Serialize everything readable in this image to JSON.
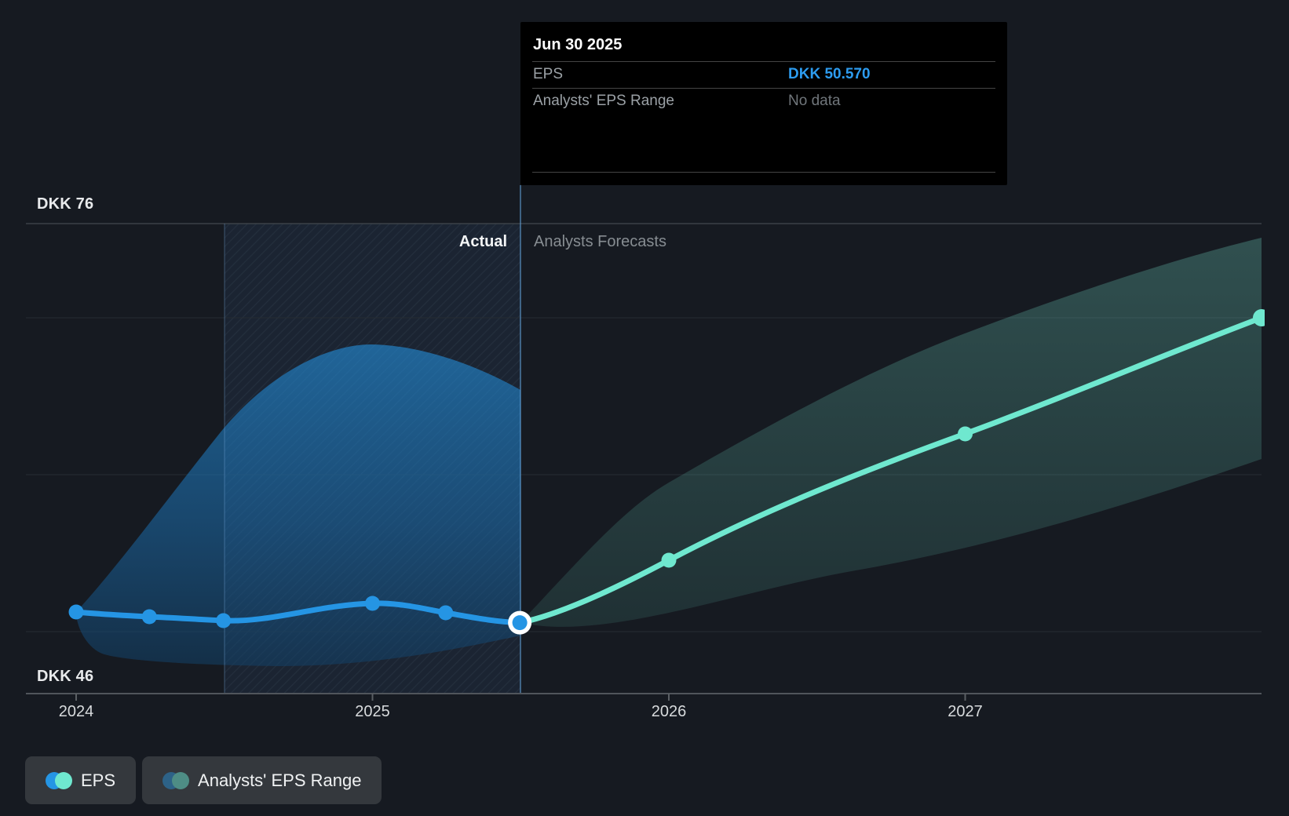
{
  "y_axis": {
    "top_label": "DKK 76",
    "bottom_label": "DKK 46"
  },
  "divider": {
    "actual_label": "Actual",
    "forecast_label": "Analysts Forecasts"
  },
  "tooltip": {
    "title": "Jun 30 2025",
    "rows": [
      {
        "label": "EPS",
        "value": "DKK 50.570"
      },
      {
        "label": "Analysts' EPS Range",
        "value": "No data"
      }
    ]
  },
  "legend": {
    "eps_label": "EPS",
    "range_label": "Analysts' EPS Range"
  },
  "colors": {
    "eps_blue": "#2595e4",
    "forecast_teal": "#6fe8cf",
    "legend_range_blue": "#2d6287",
    "legend_range_teal": "#4e8d85",
    "tooltip_value_blue": "#2d9cef"
  },
  "chart_data": {
    "type": "line",
    "title": "EPS actual vs analysts forecast",
    "unit": "DKK",
    "ylim": [
      46,
      76
    ],
    "y_gridline_values": [
      76,
      70,
      60,
      50,
      46
    ],
    "x_tick_labels": [
      "2024",
      "2025",
      "2026",
      "2027"
    ],
    "x_tick_year_fracs": [
      2024.0,
      2025.0,
      2026.0,
      2027.0
    ],
    "legend_position": "bottom-left",
    "grid": true,
    "actual_series": {
      "name": "EPS",
      "color": "#2595e4",
      "points": [
        {
          "date": "Dec 31 2023",
          "x": 2024.0,
          "value": 51.25
        },
        {
          "date": "Mar 31 2024",
          "x": 2024.247,
          "value": 50.95
        },
        {
          "date": "Jun 30 2024",
          "x": 2024.497,
          "value": 50.7
        },
        {
          "date": "Dec 31 2024",
          "x": 2025.0,
          "value": 51.8
        },
        {
          "date": "Mar 31 2025",
          "x": 2025.247,
          "value": 51.2
        },
        {
          "date": "Jun 30 2025",
          "x": 2025.497,
          "value": 50.57,
          "highlight": true
        }
      ]
    },
    "forecast_series": {
      "name": "EPS (analysts forecast)",
      "color": "#6fe8cf",
      "points": [
        {
          "date": "Dec 31 2025",
          "x": 2026.0,
          "value": 54.55
        },
        {
          "date": "Dec 31 2026",
          "x": 2027.0,
          "value": 62.6
        },
        {
          "date": "Dec 31 2027",
          "x": 2028.0,
          "value": 70.0,
          "edge": true
        }
      ]
    },
    "forecast_range": {
      "name": "Analysts' EPS Range",
      "upper": [
        {
          "date": "Jun 30 2025",
          "x": 2025.497,
          "value": 50.57
        },
        {
          "date": "Dec 31 2025",
          "x": 2026.0,
          "value": 59.5
        },
        {
          "date": "Dec 31 2026",
          "x": 2027.0,
          "value": 68.0
        },
        {
          "date": "Dec 31 2027",
          "x": 2028.0,
          "value": 75.1
        }
      ],
      "lower": [
        {
          "date": "Jun 30 2025",
          "x": 2025.497,
          "value": 50.57
        },
        {
          "date": "Dec 31 2025",
          "x": 2026.0,
          "value": 49.8
        },
        {
          "date": "Dec 31 2026",
          "x": 2027.0,
          "value": 53.5
        },
        {
          "date": "Dec 31 2027",
          "x": 2028.0,
          "value": 61.0
        }
      ]
    },
    "hover_band_x": [
      2024.5,
      2025.497
    ]
  }
}
